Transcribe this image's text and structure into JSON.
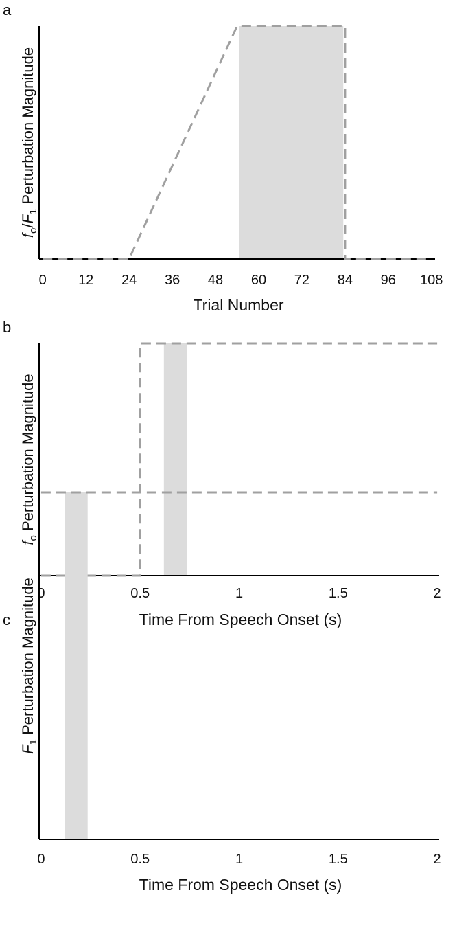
{
  "colors": {
    "window": "#dcdcdc",
    "perturbation_line": "#a0a0a0",
    "axis": "#000000"
  },
  "chart_data": [
    {
      "panel": "a",
      "type": "line",
      "xlabel": "Trial Number",
      "ylabel_parts": [
        {
          "text": "f",
          "style": "italic"
        },
        {
          "text": "o",
          "style": "sub"
        },
        {
          "text": "/",
          "style": "normal"
        },
        {
          "text": "F",
          "style": "italic"
        },
        {
          "text": "1",
          "style": "sub"
        },
        {
          "text": " Perturbation Magnitude",
          "style": "normal"
        }
      ],
      "xlim": [
        -1,
        109
      ],
      "ylim": [
        0,
        1
      ],
      "x_ticks": [
        0,
        12,
        24,
        36,
        48,
        60,
        72,
        84,
        96,
        108
      ],
      "x_tick_labels": [
        "0",
        "12",
        "24",
        "36",
        "48",
        "60",
        "72",
        "84",
        "96",
        "108"
      ],
      "y_ticks_shown": false,
      "grid": false,
      "shaded_region": {
        "x": [
          54.5,
          83.5
        ]
      },
      "series": [
        {
          "line_style": "dashed",
          "x": [
            0,
            24,
            54,
            84,
            84,
            108
          ],
          "y": [
            0,
            0,
            1,
            1,
            0,
            0
          ]
        }
      ]
    },
    {
      "panel": "b",
      "type": "line",
      "xlabel": "Time From Speech Onset (s)",
      "ylabel_parts": [
        {
          "text": "f",
          "style": "italic"
        },
        {
          "text": "o",
          "style": "sub"
        },
        {
          "text": " Perturbation Magnitude",
          "style": "normal"
        }
      ],
      "xlim": [
        -0.01,
        2.01
      ],
      "ylim": [
        0,
        1
      ],
      "x_ticks": [
        0,
        0.5,
        1,
        1.5,
        2
      ],
      "x_tick_labels": [
        "0",
        "0.5",
        "1",
        "1.5",
        "2"
      ],
      "y_ticks_shown": false,
      "grid": false,
      "shaded_region": {
        "x": [
          0.62,
          0.735
        ]
      },
      "series": [
        {
          "line_style": "dashed",
          "x": [
            0,
            0.5,
            0.5,
            2
          ],
          "y": [
            0,
            0,
            1,
            1
          ]
        }
      ]
    },
    {
      "panel": "c",
      "type": "line",
      "xlabel": "Time From Speech Onset (s)",
      "ylabel_parts": [
        {
          "text": "F",
          "style": "italic"
        },
        {
          "text": "1",
          "style": "sub"
        },
        {
          "text": " Perturbation Magnitude",
          "style": "normal"
        }
      ],
      "xlim": [
        -0.01,
        2.01
      ],
      "ylim": [
        0,
        1
      ],
      "x_ticks": [
        0,
        0.5,
        1,
        1.5,
        2
      ],
      "x_tick_labels": [
        "0",
        "0.5",
        "1",
        "1.5",
        "2"
      ],
      "y_ticks_shown": false,
      "grid": false,
      "shaded_region": {
        "x": [
          0.12,
          0.235
        ]
      },
      "series": [
        {
          "line_style": "dashed",
          "x": [
            0,
            2
          ],
          "y": [
            1,
            1
          ]
        }
      ]
    }
  ]
}
